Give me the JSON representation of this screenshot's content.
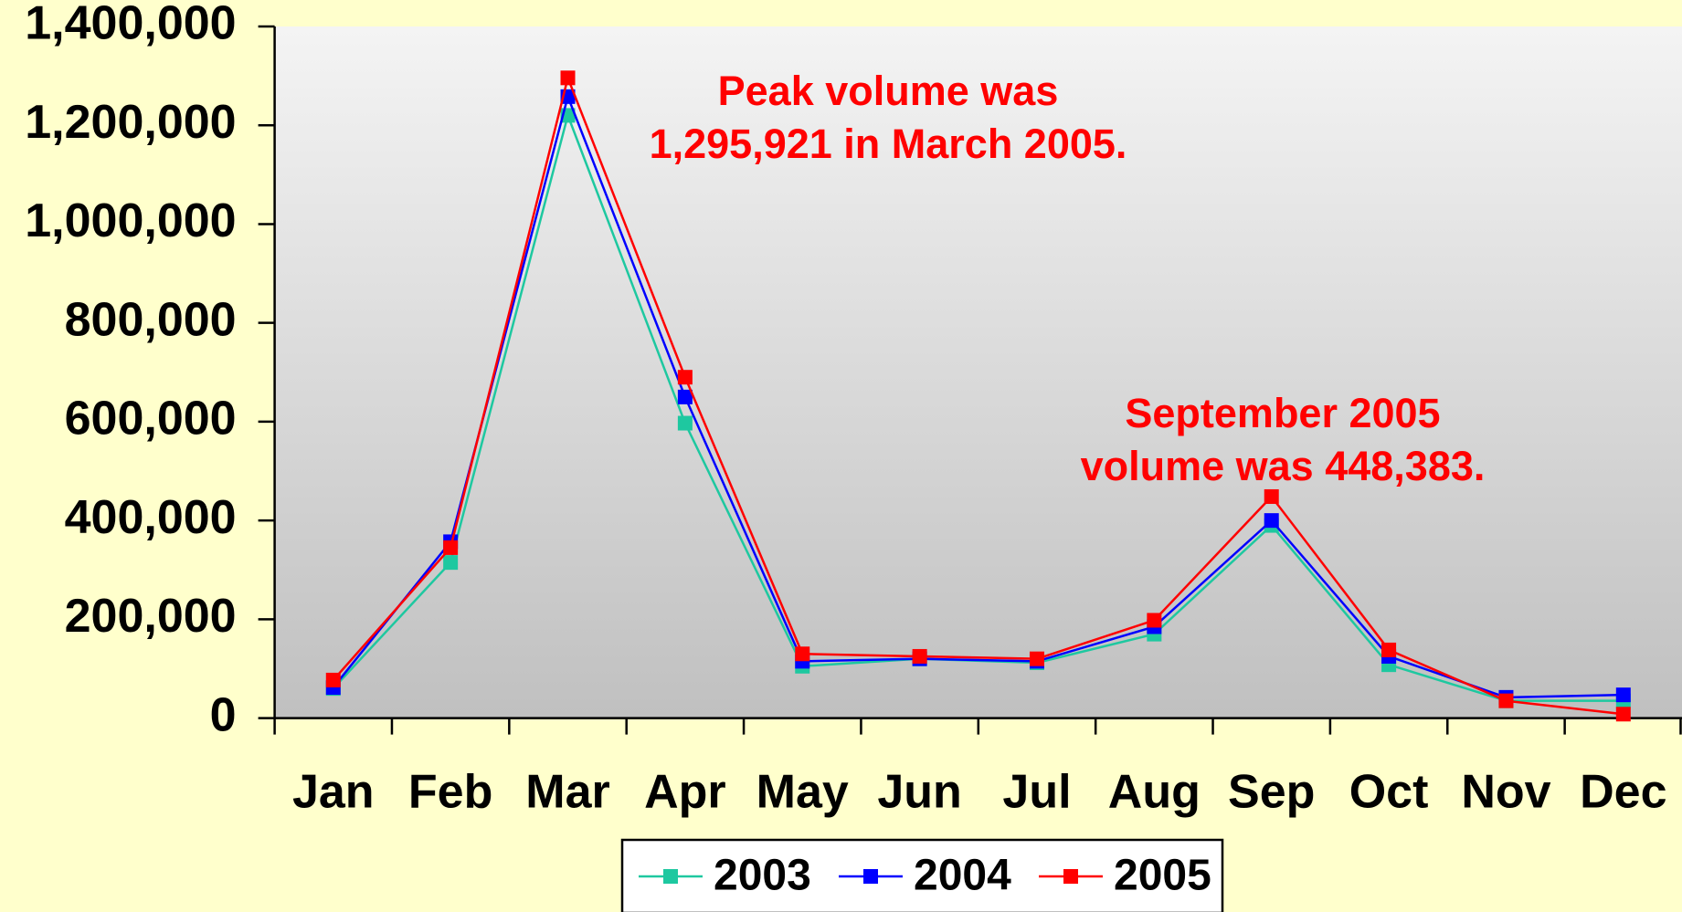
{
  "chart_data": {
    "type": "line",
    "categories": [
      "Jan",
      "Feb",
      "Mar",
      "Apr",
      "May",
      "Jun",
      "Jul",
      "Aug",
      "Sep",
      "Oct",
      "Nov",
      "Dec"
    ],
    "series": [
      {
        "name": "2003",
        "color": "#1ec8a0",
        "values": [
          60000,
          315000,
          1220000,
          597000,
          105000,
          120000,
          112000,
          170000,
          390000,
          108000,
          35000,
          35000
        ]
      },
      {
        "name": "2004",
        "color": "#0000ff",
        "values": [
          62000,
          357000,
          1258000,
          650000,
          115000,
          120000,
          115000,
          185000,
          400000,
          125000,
          42000,
          47000
        ]
      },
      {
        "name": "2005",
        "color": "#ff0000",
        "values": [
          77000,
          345000,
          1295921,
          690000,
          130000,
          125000,
          120000,
          198000,
          448383,
          138000,
          35000,
          8000
        ]
      }
    ],
    "ylim": [
      0,
      1400000
    ],
    "yticks": [
      0,
      {
        "value": 200000,
        "label": "200,000"
      },
      {
        "value": 400000,
        "label": "400,000"
      },
      {
        "value": 600000,
        "label": "600,000"
      },
      {
        "value": 800000,
        "label": "800,000"
      },
      {
        "value": 1000000,
        "label": "1,000,000"
      },
      {
        "value": 1200000,
        "label": "1,200,000"
      },
      {
        "value": 1400000,
        "label": "1,400,000"
      }
    ],
    "annotations": [
      {
        "lines": [
          "Peak volume was",
          "1,295,921 in March 2005."
        ],
        "color": "#ff0000"
      },
      {
        "lines": [
          "September 2005",
          "volume was 448,383."
        ],
        "color": "#ff0000"
      }
    ],
    "legend": "bottom"
  }
}
